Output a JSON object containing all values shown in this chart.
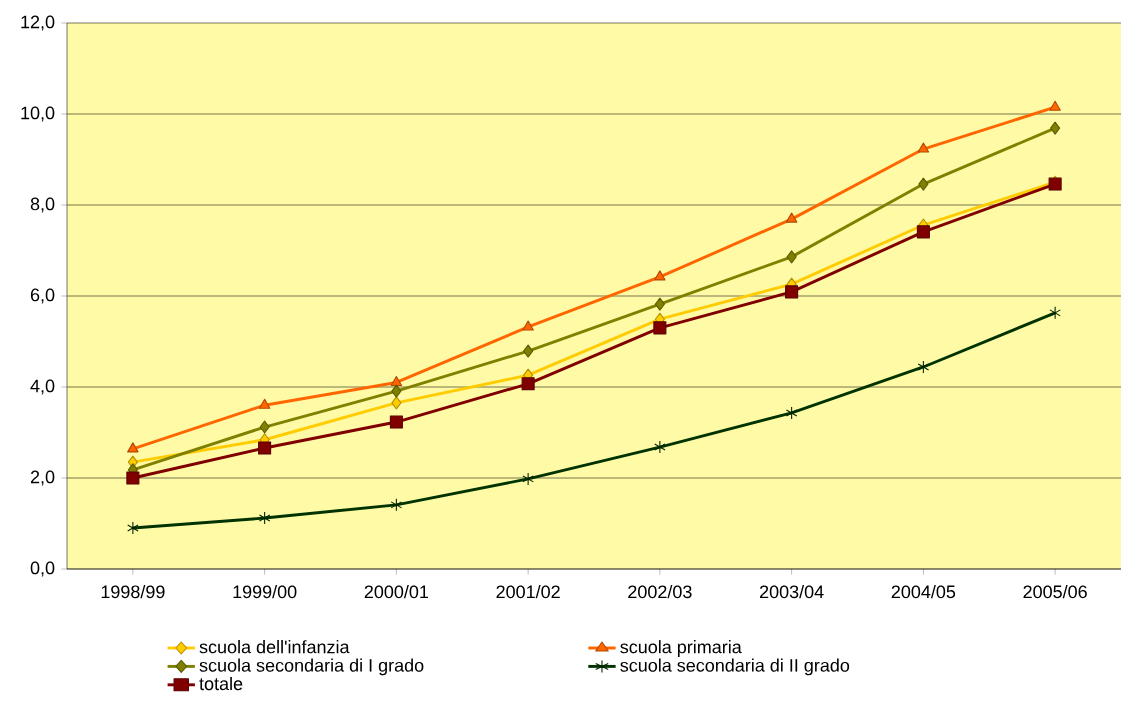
{
  "chart_data": {
    "type": "line",
    "categories": [
      "1998/99",
      "1999/00",
      "2000/01",
      "2001/02",
      "2002/03",
      "2003/04",
      "2004/05",
      "2005/06"
    ],
    "ylim": [
      0,
      12
    ],
    "yticks": [
      {
        "value": 0,
        "label": "0,0"
      },
      {
        "value": 2,
        "label": "2,0"
      },
      {
        "value": 4,
        "label": "4,0"
      },
      {
        "value": 6,
        "label": "6,0"
      },
      {
        "value": 8,
        "label": "8,0"
      },
      {
        "value": 10,
        "label": "10,0"
      },
      {
        "value": 12,
        "label": "12,0"
      }
    ],
    "grid": "y",
    "legend": "bottom",
    "series": [
      {
        "name": "scuola dell'infanzia",
        "color": "#ffcc00",
        "marker": "diamond",
        "values": [
          2.35,
          2.84,
          3.65,
          4.26,
          5.49,
          6.26,
          7.56,
          8.5
        ]
      },
      {
        "name": "scuola primaria",
        "color": "#ff6600",
        "marker": "triangle",
        "values": [
          2.64,
          3.6,
          4.1,
          5.32,
          6.42,
          7.69,
          9.23,
          10.15
        ]
      },
      {
        "name": "scuola secondaria di I grado",
        "color": "#808000",
        "marker": "diamond",
        "values": [
          2.18,
          3.12,
          3.91,
          4.79,
          5.82,
          6.86,
          8.46,
          9.69
        ]
      },
      {
        "name": "scuola secondaria di II grado",
        "color": "#003300",
        "marker": "cross",
        "values": [
          0.9,
          1.12,
          1.41,
          1.98,
          2.68,
          3.43,
          4.44,
          5.63
        ]
      },
      {
        "name": "totale",
        "color": "#800000",
        "marker": "square",
        "values": [
          2.0,
          2.66,
          3.23,
          4.07,
          5.3,
          6.09,
          7.41,
          8.46
        ]
      }
    ]
  }
}
